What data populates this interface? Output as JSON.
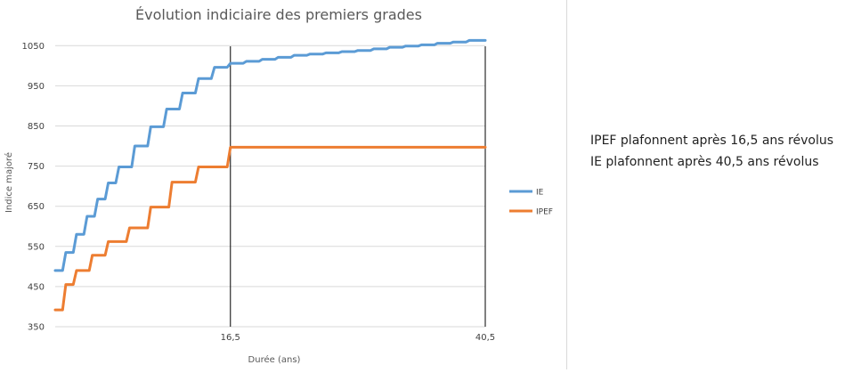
{
  "chart_data": {
    "type": "line",
    "title": "Évolution indiciaire des premiers grades",
    "xlabel": "Durée (ans)",
    "ylabel": "Indice majoré",
    "xlim": [
      0,
      40.5
    ],
    "ylim": [
      350,
      1075
    ],
    "yticks": [
      350,
      450,
      550,
      650,
      750,
      850,
      950,
      1050
    ],
    "xticks": [
      {
        "value": 16.5,
        "label": "16,5"
      },
      {
        "value": 40.5,
        "label": "40,5"
      }
    ],
    "vlines": [
      16.5,
      40.5
    ],
    "grid": "horizontal",
    "legend_position": "right",
    "series": [
      {
        "name": "IE",
        "color": "#5b9bd5",
        "points": [
          [
            0,
            490
          ],
          [
            0.7,
            490
          ],
          [
            1,
            535
          ],
          [
            1.7,
            535
          ],
          [
            2,
            580
          ],
          [
            2.7,
            580
          ],
          [
            3,
            625
          ],
          [
            3.7,
            625
          ],
          [
            4,
            668
          ],
          [
            4.7,
            668
          ],
          [
            5,
            708
          ],
          [
            5.7,
            708
          ],
          [
            6,
            748
          ],
          [
            7.2,
            748
          ],
          [
            7.5,
            800
          ],
          [
            8.7,
            800
          ],
          [
            9,
            848
          ],
          [
            10.2,
            848
          ],
          [
            10.5,
            892
          ],
          [
            11.7,
            892
          ],
          [
            12,
            932
          ],
          [
            13.2,
            932
          ],
          [
            13.5,
            968
          ],
          [
            14.7,
            968
          ],
          [
            15,
            996
          ],
          [
            16.2,
            996
          ],
          [
            16.5,
            1006
          ],
          [
            17.7,
            1006
          ],
          [
            18,
            1011
          ],
          [
            19.2,
            1011
          ],
          [
            19.5,
            1016
          ],
          [
            20.7,
            1016
          ],
          [
            21,
            1021
          ],
          [
            22.2,
            1021
          ],
          [
            22.5,
            1026
          ],
          [
            23.7,
            1026
          ],
          [
            24,
            1029
          ],
          [
            25.2,
            1029
          ],
          [
            25.5,
            1032
          ],
          [
            26.7,
            1032
          ],
          [
            27,
            1035
          ],
          [
            28.2,
            1035
          ],
          [
            28.5,
            1038
          ],
          [
            29.7,
            1038
          ],
          [
            30,
            1042
          ],
          [
            31.2,
            1042
          ],
          [
            31.5,
            1046
          ],
          [
            32.7,
            1046
          ],
          [
            33,
            1049
          ],
          [
            34.2,
            1049
          ],
          [
            34.5,
            1052
          ],
          [
            35.7,
            1052
          ],
          [
            36,
            1056
          ],
          [
            37.2,
            1056
          ],
          [
            37.5,
            1059
          ],
          [
            38.7,
            1059
          ],
          [
            39,
            1063
          ],
          [
            40.5,
            1063
          ]
        ]
      },
      {
        "name": "IPEF",
        "color": "#ed7d31",
        "points": [
          [
            0,
            392
          ],
          [
            0.7,
            392
          ],
          [
            1,
            455
          ],
          [
            1.7,
            455
          ],
          [
            2,
            490
          ],
          [
            3.2,
            490
          ],
          [
            3.5,
            528
          ],
          [
            4.7,
            528
          ],
          [
            5,
            562
          ],
          [
            6.7,
            562
          ],
          [
            7,
            596
          ],
          [
            8.7,
            596
          ],
          [
            9,
            648
          ],
          [
            10.7,
            648
          ],
          [
            11,
            710
          ],
          [
            13.2,
            710
          ],
          [
            13.5,
            748
          ],
          [
            16.2,
            748
          ],
          [
            16.5,
            797
          ],
          [
            40.5,
            797
          ]
        ]
      }
    ]
  },
  "notes": {
    "line1": "IPEF plafonnent après 16,5 ans révolus",
    "line2": "IE plafonnent après 40,5 ans révolus"
  }
}
